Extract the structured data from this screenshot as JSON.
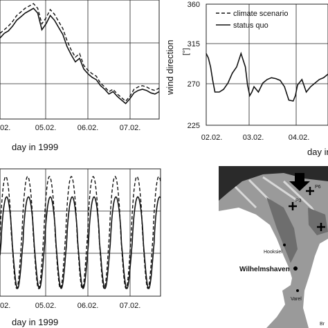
{
  "chart_data": [
    {
      "id": "top-left",
      "type": "line",
      "xlabel": "day in 1999",
      "x_ticks": [
        "02.",
        "05.02.",
        "06.02.",
        "07.02."
      ],
      "x_domain": [
        4.0,
        7.8
      ],
      "y_domain": [
        0,
        1
      ],
      "series": [
        {
          "style": "dashed",
          "x": [
            4.0,
            4.1,
            4.2,
            4.3,
            4.4,
            4.5,
            4.6,
            4.7,
            4.8,
            4.9,
            5.0,
            5.1,
            5.2,
            5.3,
            5.4,
            5.5,
            5.6,
            5.7,
            5.8,
            5.9,
            6.0,
            6.1,
            6.2,
            6.3,
            6.4,
            6.5,
            6.6,
            6.7,
            6.8,
            6.9,
            7.0,
            7.1,
            7.2,
            7.3,
            7.4,
            7.5,
            7.6,
            7.7,
            7.8
          ],
          "y": [
            0.72,
            0.75,
            0.78,
            0.82,
            0.87,
            0.9,
            0.93,
            0.95,
            0.97,
            0.93,
            0.8,
            0.85,
            0.92,
            0.88,
            0.82,
            0.76,
            0.66,
            0.58,
            0.52,
            0.55,
            0.45,
            0.41,
            0.38,
            0.36,
            0.3,
            0.27,
            0.23,
            0.25,
            0.21,
            0.18,
            0.15,
            0.19,
            0.25,
            0.27,
            0.28,
            0.27,
            0.25,
            0.24,
            0.26
          ]
        },
        {
          "style": "solid",
          "x": [
            4.0,
            4.1,
            4.2,
            4.3,
            4.4,
            4.5,
            4.6,
            4.7,
            4.8,
            4.9,
            5.0,
            5.1,
            5.2,
            5.3,
            5.4,
            5.5,
            5.6,
            5.7,
            5.8,
            5.9,
            6.0,
            6.1,
            6.2,
            6.3,
            6.4,
            6.5,
            6.6,
            6.7,
            6.8,
            6.9,
            7.0,
            7.1,
            7.2,
            7.3,
            7.4,
            7.5,
            7.6,
            7.7,
            7.8
          ],
          "y": [
            0.68,
            0.72,
            0.74,
            0.78,
            0.83,
            0.86,
            0.89,
            0.91,
            0.93,
            0.89,
            0.75,
            0.8,
            0.87,
            0.83,
            0.77,
            0.71,
            0.61,
            0.54,
            0.48,
            0.51,
            0.42,
            0.38,
            0.35,
            0.33,
            0.28,
            0.25,
            0.21,
            0.23,
            0.19,
            0.16,
            0.13,
            0.17,
            0.22,
            0.24,
            0.25,
            0.24,
            0.22,
            0.21,
            0.23
          ]
        }
      ]
    },
    {
      "id": "top-right",
      "type": "line",
      "ylabel": "wind direction",
      "yunit": "[°]",
      "xlabel": "day in 1999",
      "y_ticks": [
        "225",
        "270",
        "315",
        "360"
      ],
      "y_domain": [
        225,
        360
      ],
      "x_ticks": [
        "02.02.",
        "03.02.",
        "04.02."
      ],
      "x_domain": [
        2.0,
        4.8
      ],
      "legend": [
        "climate scenario",
        "status quo"
      ],
      "legend_placement": "top-right",
      "series": [
        {
          "style": "solid",
          "x": [
            2.0,
            2.05,
            2.1,
            2.15,
            2.2,
            2.3,
            2.4,
            2.5,
            2.6,
            2.7,
            2.8,
            2.9,
            2.95,
            3.0,
            3.05,
            3.1,
            3.2,
            3.3,
            3.4,
            3.5,
            3.6,
            3.7,
            3.8,
            3.9,
            4.0,
            4.05,
            4.1,
            4.2,
            4.3,
            4.4,
            4.5,
            4.6,
            4.7,
            4.8
          ],
          "y": [
            305,
            300,
            290,
            275,
            262,
            262,
            265,
            272,
            283,
            290,
            305,
            290,
            270,
            258,
            262,
            268,
            262,
            272,
            276,
            278,
            277,
            275,
            268,
            253,
            252,
            258,
            270,
            276,
            262,
            268,
            272,
            276,
            278,
            282
          ]
        }
      ]
    },
    {
      "id": "bottom-left",
      "type": "line",
      "xlabel": "day in 1999",
      "x_ticks": [
        "02.",
        "05.02.",
        "06.02.",
        "07.02."
      ],
      "x_domain": [
        4.0,
        7.8
      ],
      "y_domain": [
        0,
        1
      ],
      "series": [
        {
          "style": "dashed",
          "kind": "tide",
          "base": 0.5,
          "amplitude": 0.44,
          "phase_offset": 0.02
        },
        {
          "style": "solid",
          "kind": "tide",
          "base": 0.42,
          "amplitude": 0.36,
          "phase_offset": 0.0
        }
      ]
    }
  ],
  "map": {
    "labels": {
      "p6": "P6",
      "p3": "P3",
      "hooksiel": "Hooksiel",
      "wilhelmshaven": "Wilhelmshaven",
      "varel": "Varel",
      "br": "Br"
    }
  },
  "colors": {
    "line": "#111111",
    "grid": "#222222",
    "map_land": "#ffffff",
    "map_water": "#9a9a9a",
    "map_dark": "#2a2a2a"
  }
}
